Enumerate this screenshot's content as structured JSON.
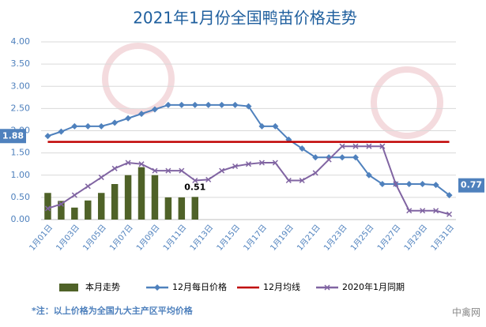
{
  "chart_data": {
    "type": "combo",
    "title": "2021年1月份全国鸭苗价格走势",
    "categories": [
      "1月01日",
      null,
      "1月03日",
      null,
      "1月05日",
      null,
      "1月07日",
      null,
      "1月09日",
      null,
      "1月11日",
      null,
      "1月13日",
      null,
      "1月15日",
      null,
      "1月17日",
      null,
      "1月19日",
      null,
      "1月21日",
      null,
      "1月23日",
      null,
      "1月25日",
      null,
      "1月27日",
      null,
      "1月29日",
      null,
      "1月31日"
    ],
    "series": [
      {
        "name": "本月走势",
        "kind": "bar",
        "color": "#4f6228",
        "values": [
          0.6,
          0.42,
          0.27,
          0.43,
          0.6,
          0.8,
          1.0,
          1.18,
          1.0,
          0.5,
          0.5,
          0.51,
          null,
          null,
          null,
          null,
          null,
          null,
          null,
          null,
          null,
          null,
          null,
          null,
          null,
          null,
          null,
          null,
          null,
          null,
          null
        ],
        "value_labels": [
          null,
          null,
          null,
          null,
          null,
          null,
          null,
          null,
          null,
          null,
          null,
          "0.51",
          null,
          null,
          null,
          null,
          null,
          null,
          null,
          null,
          null,
          null,
          null,
          null,
          null,
          null,
          null,
          null,
          null,
          null,
          null
        ]
      },
      {
        "name": "12月每日价格",
        "kind": "line",
        "marker": "diamond",
        "color": "#4f81bd",
        "values": [
          1.88,
          1.98,
          2.1,
          2.1,
          2.1,
          2.18,
          2.28,
          2.38,
          2.48,
          2.58,
          2.58,
          2.58,
          2.58,
          2.58,
          2.58,
          2.55,
          2.1,
          2.1,
          1.8,
          1.6,
          1.4,
          1.4,
          1.4,
          1.4,
          1.0,
          0.8,
          0.8,
          0.8,
          0.8,
          0.78,
          0.55
        ]
      },
      {
        "name": "12月均线",
        "kind": "line",
        "marker": "none",
        "color": "#c00000",
        "values": [
          1.75,
          1.75,
          1.75,
          1.75,
          1.75,
          1.75,
          1.75,
          1.75,
          1.75,
          1.75,
          1.75,
          1.75,
          1.75,
          1.75,
          1.75,
          1.75,
          1.75,
          1.75,
          1.75,
          1.75,
          1.75,
          1.75,
          1.75,
          1.75,
          1.75,
          1.75,
          1.75,
          1.75,
          1.75,
          1.75,
          1.75
        ]
      },
      {
        "name": "2020年1月同期",
        "kind": "line",
        "marker": "x",
        "color": "#8064a2",
        "values": [
          0.25,
          0.35,
          0.55,
          0.75,
          0.95,
          1.15,
          1.28,
          1.25,
          1.1,
          1.1,
          1.1,
          0.88,
          0.9,
          1.1,
          1.2,
          1.25,
          1.28,
          1.28,
          0.88,
          0.88,
          1.05,
          1.35,
          1.65,
          1.65,
          1.65,
          1.65,
          0.8,
          0.2,
          0.2,
          0.2,
          0.12
        ]
      }
    ],
    "annotations": [
      {
        "text": "1.88",
        "value": 1.88
      },
      {
        "text": "0.77",
        "value": 0.77
      }
    ],
    "ylim": [
      0,
      4
    ],
    "yticks": [
      {
        "value": 0,
        "label": "0.00"
      },
      {
        "value": 0.5,
        "label": "0.50"
      },
      {
        "value": 1,
        "label": "1.00"
      },
      {
        "value": 1.5,
        "label": "1.50"
      },
      {
        "value": 2,
        "label": "2.00"
      },
      {
        "value": 2.5,
        "label": "2.50"
      },
      {
        "value": 3,
        "label": "3.00"
      },
      {
        "value": 3.5,
        "label": "3.50"
      },
      {
        "value": 4,
        "label": "4.00"
      }
    ],
    "grid": true,
    "legend": "bottom",
    "footnote": "*注：以上价格为全国九大主产区平均价格",
    "watermark": "中禽网"
  }
}
